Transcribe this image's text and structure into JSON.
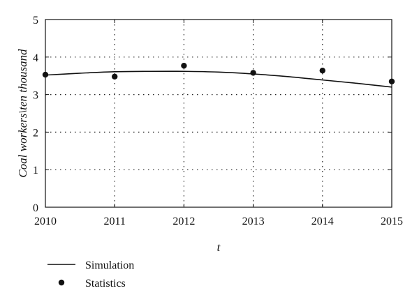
{
  "chart_data": {
    "type": "line",
    "xlabel": "t",
    "ylabel": "Coal workers\\ten thousand",
    "xlim": [
      2010,
      2015
    ],
    "ylim": [
      0,
      5
    ],
    "x_ticks": [
      2010,
      2011,
      2012,
      2013,
      2014,
      2015
    ],
    "y_ticks": [
      0,
      1,
      2,
      3,
      4,
      5
    ],
    "grid": "dotted",
    "legend_position": "bottom-left",
    "series": [
      {
        "name": "Simulation",
        "style": "line",
        "color": "#111111",
        "x": [
          2010,
          2010.5,
          2011,
          2011.5,
          2012,
          2012.5,
          2013,
          2013.5,
          2014,
          2014.5,
          2015
        ],
        "y": [
          3.52,
          3.57,
          3.61,
          3.62,
          3.62,
          3.6,
          3.55,
          3.48,
          3.39,
          3.3,
          3.2
        ]
      },
      {
        "name": "Statistics",
        "style": "scatter",
        "color": "#111111",
        "x": [
          2010,
          2011,
          2012,
          2013,
          2014,
          2015
        ],
        "y": [
          3.53,
          3.48,
          3.77,
          3.58,
          3.64,
          3.35
        ]
      }
    ]
  }
}
